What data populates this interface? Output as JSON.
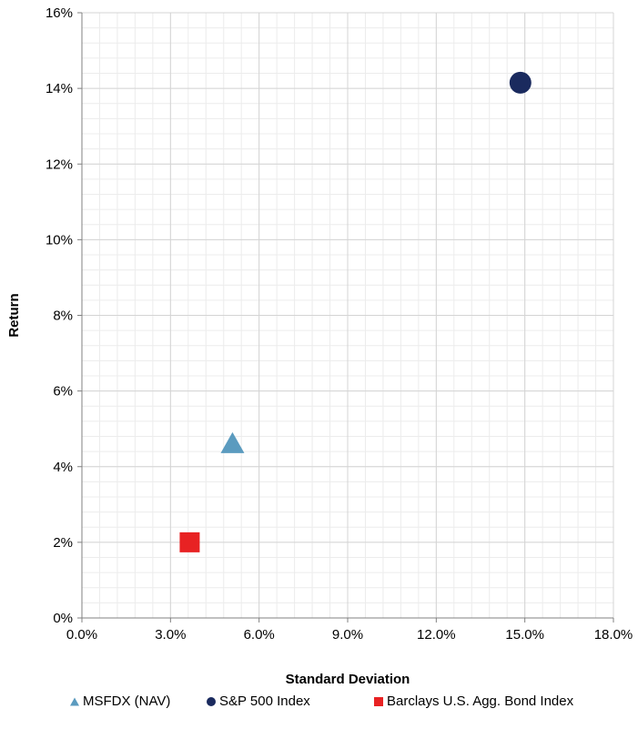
{
  "chart_data": {
    "type": "scatter",
    "title": "",
    "xlabel": "Standard Deviation",
    "ylabel": "Return",
    "xlim": [
      0,
      18
    ],
    "ylim": [
      0,
      16
    ],
    "x_ticks": [
      "0.0%",
      "3.0%",
      "6.0%",
      "9.0%",
      "12.0%",
      "15.0%",
      "18.0%"
    ],
    "y_ticks": [
      "0%",
      "2%",
      "4%",
      "6%",
      "8%",
      "10%",
      "12%",
      "14%",
      "16%"
    ],
    "grid": true,
    "legend_position": "bottom",
    "series": [
      {
        "name": "MSFDX (NAV)",
        "marker": "triangle",
        "color": "#5b9bbf",
        "x": [
          5.1
        ],
        "y": [
          4.6
        ]
      },
      {
        "name": "S&P 500 Index",
        "marker": "circle",
        "color": "#1a2a5e",
        "x": [
          14.85
        ],
        "y": [
          14.15
        ]
      },
      {
        "name": "Barclays U.S. Agg. Bond Index",
        "marker": "square",
        "color": "#e82223",
        "x": [
          3.65
        ],
        "y": [
          2.0
        ]
      }
    ]
  }
}
